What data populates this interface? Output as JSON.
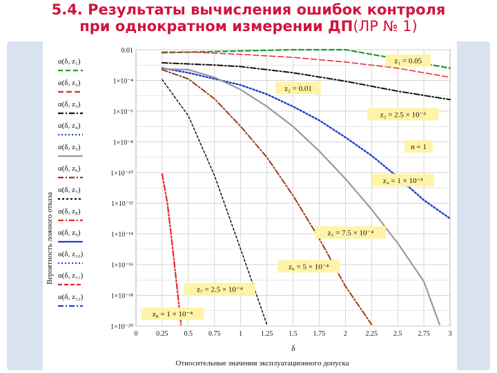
{
  "slide": {
    "title_line1": "5.4. Результаты вычисления ошибок контроля",
    "title_line2_bold": "при однократном измерении ДП",
    "title_line2_plain": "(ЛР № 1)"
  },
  "colors": {
    "title": "#d2143c",
    "frame": "#d9e2f1",
    "grid": "#cccccc",
    "annotation_bg": "#fff3a8"
  },
  "chart_data": {
    "type": "line",
    "xlabel": "Относительные значения эксплуатационного допуска",
    "x_axis_symbol": "δ",
    "ylabel": "Вероятность ложного отказа",
    "scale_y": "log",
    "xlim": [
      0,
      3
    ],
    "ylim_exp": [
      -20,
      -2
    ],
    "x_ticks": [
      "0",
      "0.25",
      "0.5",
      "0.75",
      "1",
      "1.25",
      "1.5",
      "1.75",
      "2",
      "2.25",
      "2.5",
      "2.75",
      "3"
    ],
    "y_ticks": [
      {
        "exp": -2,
        "label": "0.01"
      },
      {
        "exp": -4,
        "label": "1×10⁻⁴"
      },
      {
        "exp": -6,
        "label": "1×10⁻⁶"
      },
      {
        "exp": -8,
        "label": "1×10⁻⁸"
      },
      {
        "exp": -10,
        "label": "1×10⁻¹⁰"
      },
      {
        "exp": -12,
        "label": "1×10⁻¹²"
      },
      {
        "exp": -14,
        "label": "1×10⁻¹⁴"
      },
      {
        "exp": -16,
        "label": "1×10⁻¹⁶"
      },
      {
        "exp": -18,
        "label": "1×10⁻¹⁸"
      },
      {
        "exp": -20,
        "label": "1×10⁻²⁰"
      }
    ],
    "grid": true,
    "series": [
      {
        "name": "α(δ, z₁)",
        "color": "#1a9a2a",
        "dash": "7,4",
        "width": 2.2,
        "points": [
          [
            0.25,
            -2.2
          ],
          [
            1.5,
            -2.0
          ],
          [
            2.0,
            -2.0
          ],
          [
            2.25,
            -2.3
          ],
          [
            2.5,
            -2.6
          ],
          [
            2.75,
            -2.9
          ],
          [
            3.0,
            -3.2
          ]
        ]
      },
      {
        "name": "α(δ, z₂)",
        "color": "#e8232a",
        "dash": "8,4",
        "width": 1.5,
        "points": [
          [
            0.25,
            -2.15
          ],
          [
            0.5,
            -2.15
          ],
          [
            1.0,
            -2.3
          ],
          [
            1.5,
            -2.5
          ],
          [
            2.0,
            -2.8
          ],
          [
            2.5,
            -3.2
          ],
          [
            3.0,
            -3.8
          ]
        ]
      },
      {
        "name": "α(δ, z₃)",
        "color": "#111111",
        "dash": "8,3,2,3",
        "width": 2,
        "points": [
          [
            0.25,
            -2.85
          ],
          [
            0.75,
            -3.0
          ],
          [
            1.0,
            -3.1
          ],
          [
            1.5,
            -3.5
          ],
          [
            2.0,
            -4.05
          ],
          [
            2.5,
            -4.7
          ],
          [
            3.0,
            -5.25
          ]
        ]
      },
      {
        "name": "α(δ, z₄)",
        "color": "#1f3fd0",
        "dash": "2,3",
        "width": 2.5,
        "points": [
          [
            0.25,
            -3.2
          ],
          [
            0.5,
            -3.5
          ],
          [
            0.75,
            -3.9
          ],
          [
            1.0,
            -4.3
          ],
          [
            1.25,
            -4.9
          ],
          [
            1.5,
            -5.7
          ],
          [
            1.75,
            -6.6
          ],
          [
            2.0,
            -7.7
          ],
          [
            2.25,
            -8.9
          ],
          [
            2.5,
            -10.3
          ],
          [
            2.75,
            -11.8
          ],
          [
            3.0,
            -13.0
          ]
        ]
      },
      {
        "name": "α(δ, z₅)",
        "color": "#999999",
        "dash": "",
        "width": 2.2,
        "points": [
          [
            0.25,
            -3.25
          ],
          [
            0.5,
            -3.3
          ],
          [
            0.75,
            -3.8
          ],
          [
            1.0,
            -4.6
          ],
          [
            1.25,
            -5.7
          ],
          [
            1.5,
            -7.0
          ],
          [
            1.75,
            -8.6
          ],
          [
            2.0,
            -10.4
          ],
          [
            2.25,
            -12.4
          ],
          [
            2.5,
            -14.6
          ],
          [
            2.75,
            -17.1
          ],
          [
            2.9,
            -19.9
          ]
        ]
      },
      {
        "name": "α(δ, z₆)",
        "color": "#9a3a10",
        "dash": "8,3,2,3",
        "width": 2,
        "points": [
          [
            0.25,
            -3.3
          ],
          [
            0.5,
            -3.9
          ],
          [
            0.75,
            -5.2
          ],
          [
            1.0,
            -7.0
          ],
          [
            1.25,
            -9.0
          ],
          [
            1.5,
            -11.5
          ],
          [
            1.75,
            -14.3
          ],
          [
            2.0,
            -17.4
          ],
          [
            2.25,
            -19.9
          ]
        ]
      },
      {
        "name": "α(δ, z₇)",
        "color": "#111111",
        "dash": "3,3",
        "width": 1.5,
        "points": [
          [
            0.25,
            -3.95
          ],
          [
            0.5,
            -6.3
          ],
          [
            0.75,
            -10.2
          ],
          [
            1.0,
            -15.0
          ],
          [
            1.25,
            -19.9
          ]
        ]
      },
      {
        "name": "α(δ, z₈)",
        "color": "#e8232a",
        "dash": "8,3,2,3",
        "width": 2.2,
        "points": [
          [
            0.25,
            -10.1
          ],
          [
            0.3,
            -12.0
          ],
          [
            0.35,
            -14.9
          ],
          [
            0.4,
            -18.0
          ],
          [
            0.43,
            -19.9
          ]
        ]
      }
    ],
    "legend": [
      {
        "label": "α(δ, z₁)",
        "color": "#1a9a2a",
        "dash": "7,4"
      },
      {
        "label": "α(δ, z₂)",
        "color": "#e8232a",
        "dash": "8,4"
      },
      {
        "label": "α(δ, z₃)",
        "color": "#111111",
        "dash": "8,3,2,3"
      },
      {
        "label": "α(δ, z₄)",
        "color": "#1f3fd0",
        "dash": "2,3"
      },
      {
        "label": "α(δ, z₅)",
        "color": "#999999",
        "dash": ""
      },
      {
        "label": "α(δ, z₆)",
        "color": "#9a3a10",
        "dash": "8,3,2,3"
      },
      {
        "label": "α(δ, z₇)",
        "color": "#111111",
        "dash": "3,3"
      },
      {
        "label": "α(δ, z₈)",
        "color": "#e8232a",
        "dash": "8,3,2,3"
      },
      {
        "label": "α(δ, z₉)",
        "color": "#1f3fd0",
        "dash": ""
      },
      {
        "label": "α(δ, z₁₀)",
        "color": "#1f3fd0",
        "dash": "2,3"
      },
      {
        "label": "α(δ, z₁₁)",
        "color": "#e8232a",
        "dash": "6,3"
      },
      {
        "label": "α(δ, z₁₂)",
        "color": "#1f3fd0",
        "dash": "8,3,2,3"
      }
    ],
    "annotations": [
      {
        "text": "z₁ = 0.05",
        "x": 2.6,
        "yexp": -2.7
      },
      {
        "text": "z₂ = 0.01",
        "x": 1.55,
        "yexp": -4.5
      },
      {
        "text": "z₃ = 2.5 × 10⁻³",
        "x": 2.55,
        "yexp": -6.2
      },
      {
        "text": "n = 1",
        "x": 2.7,
        "yexp": -8.3
      },
      {
        "text": "z₄ = 1 × 10⁻³",
        "x": 2.55,
        "yexp": -10.5
      },
      {
        "text": "z₅ = 7.5 × 10⁻⁴",
        "x": 2.05,
        "yexp": -13.9
      },
      {
        "text": "z₆ = 5 × 10⁻⁴",
        "x": 1.65,
        "yexp": -16.1
      },
      {
        "text": "z₇ = 2.5 × 10⁻⁴",
        "x": 0.8,
        "yexp": -17.6
      },
      {
        "text": "z₈ = 1 × 10⁻⁴",
        "x": 0.35,
        "yexp": -19.2
      }
    ]
  }
}
